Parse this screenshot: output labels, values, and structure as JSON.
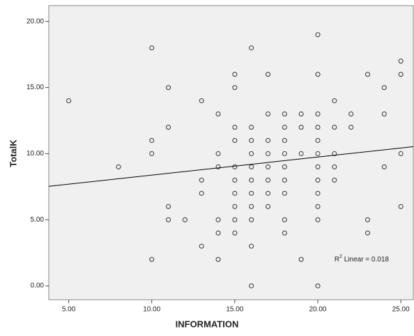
{
  "chart_data": {
    "type": "scatter",
    "x_label": "INFORMATION",
    "y_label": "TotalK",
    "x": [
      5,
      8,
      10,
      10,
      10,
      10,
      11,
      11,
      11,
      11,
      12,
      13,
      13,
      13,
      13,
      14,
      14,
      14,
      14,
      14,
      14,
      15,
      15,
      15,
      15,
      15,
      15,
      15,
      15,
      15,
      15,
      16,
      16,
      16,
      16,
      16,
      16,
      16,
      16,
      16,
      16,
      16,
      17,
      17,
      17,
      17,
      17,
      17,
      17,
      17,
      18,
      18,
      18,
      18,
      18,
      18,
      18,
      18,
      18,
      19,
      19,
      19,
      19,
      20,
      20,
      20,
      20,
      20,
      20,
      20,
      20,
      20,
      20,
      20,
      20,
      21,
      21,
      21,
      21,
      21,
      22,
      22,
      23,
      23,
      23,
      24,
      24,
      24,
      25,
      25,
      25,
      25
    ],
    "y": [
      14,
      9,
      18,
      11,
      10,
      2,
      15,
      12,
      6,
      5,
      5,
      14,
      8,
      7,
      3,
      13,
      10,
      9,
      5,
      4,
      2,
      16,
      15,
      12,
      11,
      9,
      8,
      7,
      6,
      5,
      4,
      18,
      12,
      11,
      10,
      9,
      8,
      7,
      6,
      5,
      3,
      0,
      16,
      13,
      11,
      10,
      9,
      8,
      7,
      6,
      13,
      12,
      11,
      10,
      9,
      8,
      7,
      5,
      4,
      13,
      12,
      10,
      2,
      19,
      16,
      13,
      12,
      11,
      10,
      9,
      8,
      7,
      6,
      5,
      0,
      14,
      12,
      10,
      9,
      8,
      13,
      12,
      16,
      5,
      4,
      15,
      13,
      9,
      17,
      16,
      10,
      6
    ],
    "marker_color": "#333333",
    "fit_line": {
      "x": [
        3.8,
        25.75
      ],
      "y": [
        7.53,
        10.53
      ],
      "color": "#000000"
    },
    "annotation": {
      "base": "R",
      "sup": "2",
      "text": " Linear = 0.018",
      "x": 21,
      "y": 2
    },
    "xlim": [
      3.8,
      25.75
    ],
    "ylim": [
      -1.05,
      21.2
    ],
    "xticks": [
      {
        "value": 5,
        "label": "5.00"
      },
      {
        "value": 10,
        "label": "10.00"
      },
      {
        "value": 15,
        "label": "15.00"
      },
      {
        "value": 20,
        "label": "20.00"
      },
      {
        "value": 25,
        "label": "25.00"
      }
    ],
    "yticks": [
      {
        "value": 0,
        "label": "0.00"
      },
      {
        "value": 5,
        "label": "5.00"
      },
      {
        "value": 10,
        "label": "10.00"
      },
      {
        "value": 15,
        "label": "15.00"
      },
      {
        "value": 20,
        "label": "20.00"
      }
    ],
    "background": "#f0f0f0"
  }
}
